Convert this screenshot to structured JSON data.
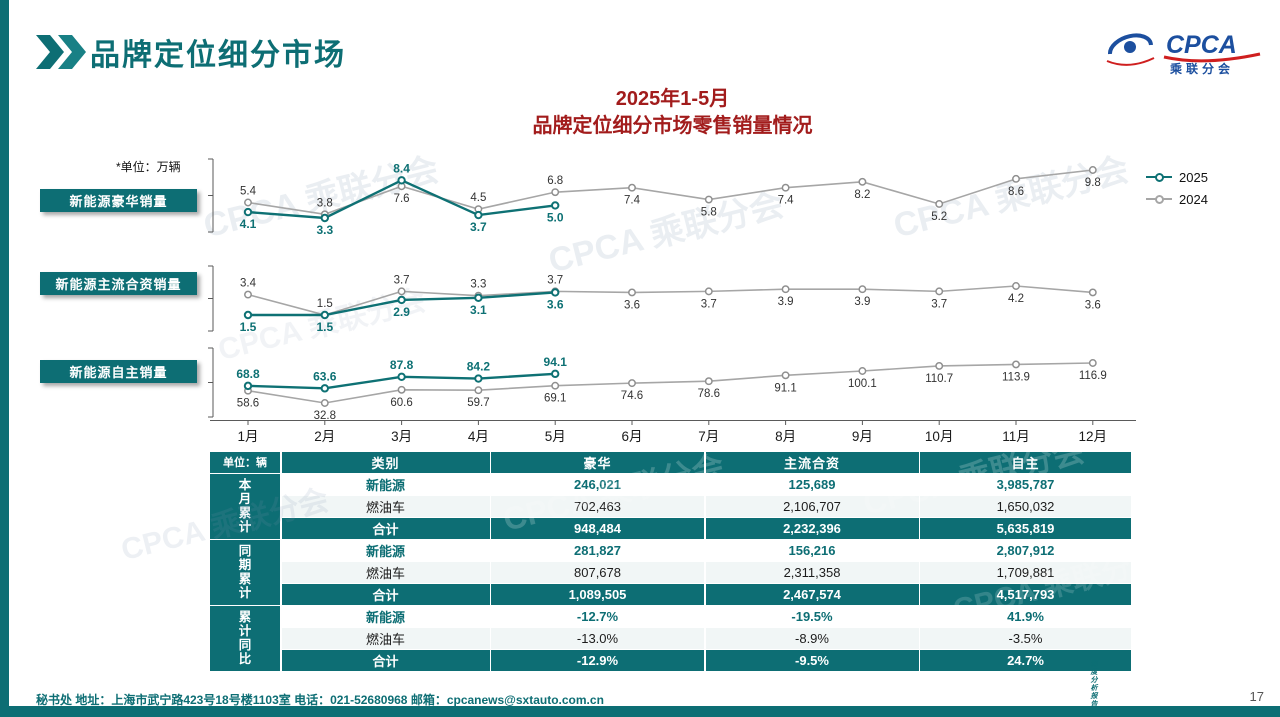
{
  "page": {
    "title": "品牌定位细分市场",
    "footer_text": "秘书处   地址：上海市武宁路423号18号楼1103室   电话：021-52680968   邮箱：cpcanews@sxtauto.com.cn",
    "side_note": "深度分析报告",
    "page_number": "17",
    "watermark_text": "CPCA 乘联分会"
  },
  "logo": {
    "name": "CPCA",
    "subtitle": "乘联分会"
  },
  "chart": {
    "title_line1": "2025年1-5月",
    "title_line2": "品牌定位细分市场零售销量情况",
    "unit_note": "*单位：万辆",
    "legend": [
      {
        "label": "2025",
        "color": "#0e7174"
      },
      {
        "label": "2024",
        "color": "#a6a6a6"
      }
    ]
  },
  "chart_data": [
    {
      "type": "line",
      "title": "新能源豪华销量",
      "unit": "万辆",
      "categories": [
        "1月",
        "2月",
        "3月",
        "4月",
        "5月",
        "6月",
        "7月",
        "8月",
        "9月",
        "10月",
        "11月",
        "12月"
      ],
      "series": [
        {
          "name": "2025",
          "color": "#0e7174",
          "values": [
            4.1,
            3.3,
            8.4,
            3.7,
            5.0
          ]
        },
        {
          "name": "2024",
          "color": "#a6a6a6",
          "values": [
            5.4,
            3.8,
            7.6,
            4.5,
            6.8,
            7.4,
            5.8,
            7.4,
            8.2,
            5.2,
            8.6,
            9.8
          ]
        }
      ]
    },
    {
      "type": "line",
      "title": "新能源主流合资销量",
      "unit": "万辆",
      "categories": [
        "1月",
        "2月",
        "3月",
        "4月",
        "5月",
        "6月",
        "7月",
        "8月",
        "9月",
        "10月",
        "11月",
        "12月"
      ],
      "series": [
        {
          "name": "2025",
          "color": "#0e7174",
          "values": [
            1.5,
            1.5,
            2.9,
            3.1,
            3.6
          ]
        },
        {
          "name": "2024",
          "color": "#a6a6a6",
          "values": [
            3.4,
            1.5,
            3.7,
            3.3,
            3.7,
            3.6,
            3.7,
            3.9,
            3.9,
            3.7,
            4.2,
            3.6
          ]
        }
      ]
    },
    {
      "type": "line",
      "title": "新能源自主销量",
      "unit": "万辆",
      "categories": [
        "1月",
        "2月",
        "3月",
        "4月",
        "5月",
        "6月",
        "7月",
        "8月",
        "9月",
        "10月",
        "11月",
        "12月"
      ],
      "series": [
        {
          "name": "2025",
          "color": "#0e7174",
          "values": [
            68.8,
            63.6,
            87.8,
            84.2,
            94.1
          ]
        },
        {
          "name": "2024",
          "color": "#a6a6a6",
          "values": [
            58.6,
            32.8,
            60.6,
            59.7,
            69.1,
            74.6,
            78.6,
            91.1,
            100.1,
            110.7,
            113.9,
            116.9
          ]
        }
      ]
    }
  ],
  "table": {
    "unit_header": "单位：辆",
    "col_headers": [
      "类别",
      "豪华",
      "主流合资",
      "自主"
    ],
    "groups": [
      {
        "label": "本月累计",
        "rows": [
          {
            "cat": "新能源",
            "style": "nev",
            "values": [
              "246,021",
              "125,689",
              "3,985,787"
            ]
          },
          {
            "cat": "燃油车",
            "style": "ice",
            "values": [
              "702,463",
              "2,106,707",
              "1,650,032"
            ]
          },
          {
            "cat": "合计",
            "style": "total",
            "values": [
              "948,484",
              "2,232,396",
              "5,635,819"
            ]
          }
        ]
      },
      {
        "label": "同期累计",
        "rows": [
          {
            "cat": "新能源",
            "style": "nev",
            "values": [
              "281,827",
              "156,216",
              "2,807,912"
            ]
          },
          {
            "cat": "燃油车",
            "style": "ice",
            "values": [
              "807,678",
              "2,311,358",
              "1,709,881"
            ]
          },
          {
            "cat": "合计",
            "style": "total",
            "values": [
              "1,089,505",
              "2,467,574",
              "4,517,793"
            ]
          }
        ]
      },
      {
        "label": "累计同比",
        "rows": [
          {
            "cat": "新能源",
            "style": "nev",
            "values": [
              "-12.7%",
              "-19.5%",
              "41.9%"
            ]
          },
          {
            "cat": "燃油车",
            "style": "ice",
            "values": [
              "-13.0%",
              "-8.9%",
              "-3.5%"
            ]
          },
          {
            "cat": "合计",
            "style": "total",
            "values": [
              "-12.9%",
              "-9.5%",
              "24.7%"
            ]
          }
        ]
      }
    ]
  }
}
